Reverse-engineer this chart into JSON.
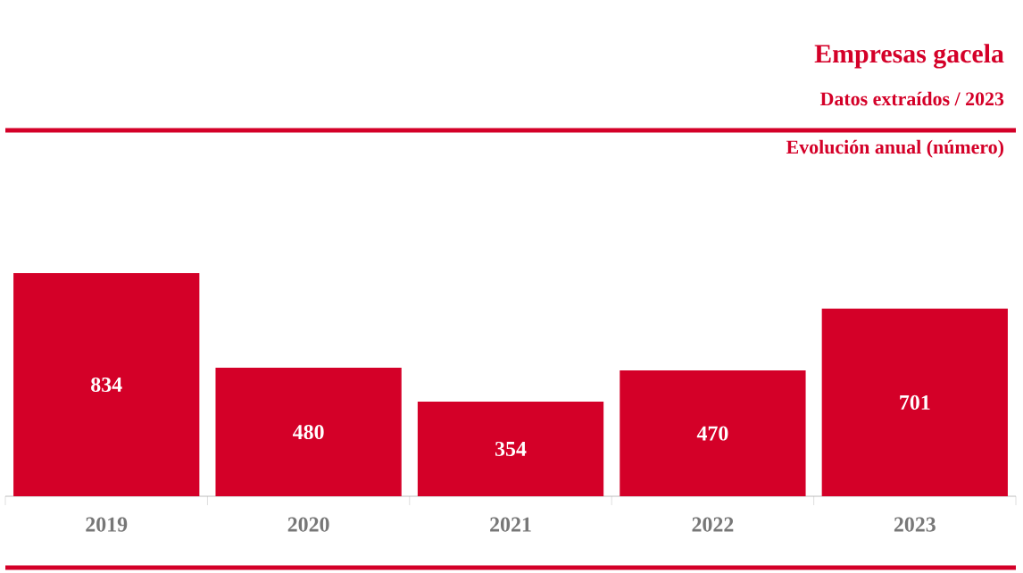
{
  "chart_data": {
    "type": "bar",
    "title": "Empresas gacela",
    "subtitle": "Datos extraídos / 2023",
    "annotations": [
      "Evolución anual (número)"
    ],
    "categories": [
      "2019",
      "2020",
      "2021",
      "2022",
      "2023"
    ],
    "values": [
      834,
      480,
      354,
      470,
      701
    ],
    "color": "#d40028",
    "tick_labels": "x",
    "data_labels": true
  }
}
